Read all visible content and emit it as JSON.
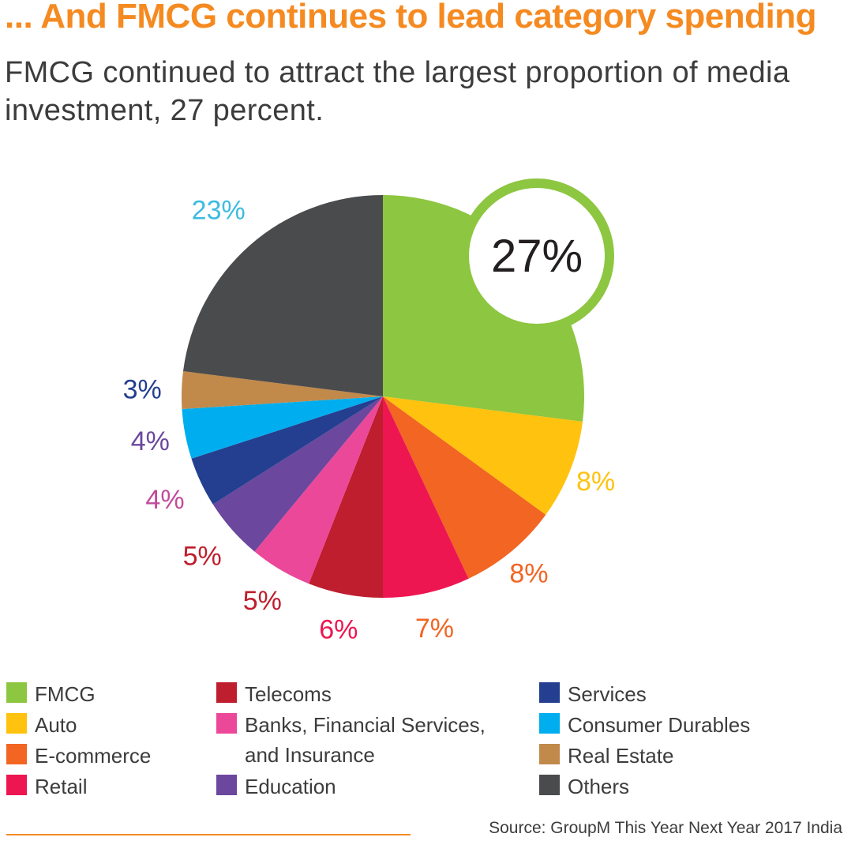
{
  "header": {
    "title": "... And FMCG continues to lead category spending",
    "subtitle": "FMCG continued to attract the largest proportion of media investment, 27 percent."
  },
  "chart_data": {
    "type": "pie",
    "title": "... And FMCG continues to lead category spending",
    "highlight": {
      "category": "FMCG",
      "label": "27%"
    },
    "slices": [
      {
        "name": "FMCG",
        "value": 27,
        "label": "27%",
        "color": "#8dc640"
      },
      {
        "name": "Auto",
        "value": 8,
        "label": "8%",
        "color": "#ffc20e"
      },
      {
        "name": "E-commerce",
        "value": 8,
        "label": "8%",
        "color": "#f26522"
      },
      {
        "name": "Retail",
        "value": 7,
        "label": "7%",
        "color": "#ed1651"
      },
      {
        "name": "Telecoms",
        "value": 6,
        "label": "6%",
        "color": "#be1e2d"
      },
      {
        "name": "Banks, Financial Services, and Insurance",
        "value": 5,
        "label": "5%",
        "color": "#ec4899"
      },
      {
        "name": "Education",
        "value": 5,
        "label": "5%",
        "color": "#6b479d"
      },
      {
        "name": "Services",
        "value": 4,
        "label": "4%",
        "color": "#243f90"
      },
      {
        "name": "Consumer Durables",
        "value": 4,
        "label": "4%",
        "color": "#00aeef"
      },
      {
        "name": "Real Estate",
        "value": 3,
        "label": "3%",
        "color": "#c1894a"
      },
      {
        "name": "Others",
        "value": 23,
        "label": "23%",
        "color": "#4a4b4d"
      }
    ],
    "label_colors": [
      "#8dc640",
      "#ffc20e",
      "#f26522",
      "#f26522",
      "#ed1651",
      "#be1e2d",
      "#be1e2d",
      "#c34a9c",
      "#6b479d",
      "#243f90",
      "#3dbbe0"
    ]
  },
  "legend": {
    "items": [
      {
        "label": "FMCG",
        "color": "#8dc640"
      },
      {
        "label": "Auto",
        "color": "#ffc20e"
      },
      {
        "label": "E-commerce",
        "color": "#f26522"
      },
      {
        "label": "Retail",
        "color": "#ed1651"
      },
      {
        "label": "Telecoms",
        "color": "#be1e2d"
      },
      {
        "label": "Banks, Financial Services, and Insurance",
        "color": "#ec4899"
      },
      {
        "label": "Education",
        "color": "#6b479d"
      },
      {
        "label": "Services",
        "color": "#243f90"
      },
      {
        "label": "Consumer Durables",
        "color": "#00aeef"
      },
      {
        "label": "Real Estate",
        "color": "#c1894a"
      },
      {
        "label": "Others",
        "color": "#4a4b4d"
      }
    ]
  },
  "footer": {
    "source": "Source: GroupM This Year Next Year 2017 India"
  }
}
